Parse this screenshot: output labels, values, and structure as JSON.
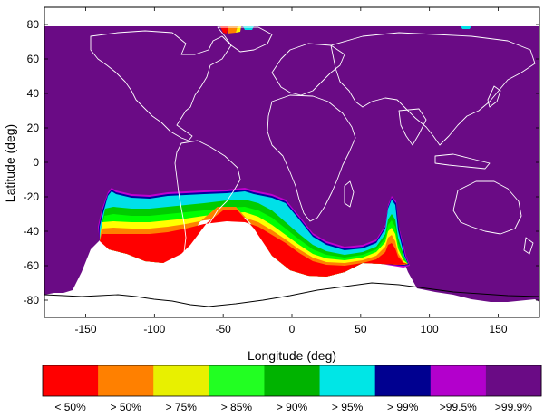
{
  "map": {
    "xlabel": "Longitude (deg)",
    "ylabel": "Latitude (deg)",
    "xlim": [
      -180,
      180
    ],
    "ylim": [
      -90,
      90
    ],
    "x_ticks": [
      -150,
      -100,
      -50,
      0,
      50,
      100,
      150
    ],
    "y_ticks": [
      80,
      60,
      40,
      20,
      0,
      -20,
      -40,
      -60,
      -80
    ],
    "data_lat_max": 75,
    "colors": {
      "background_land_ocean": "#6a0b85",
      "no_coverage": "#ffffff",
      "coastline": "#ffffff",
      "bands": [
        "#ff0000",
        "#ff8000",
        "#ffff00",
        "#00ff00",
        "#00cc00",
        "#00e0e8",
        "#0000a0",
        "#c000d0",
        "#6a0b85"
      ]
    }
  },
  "colorbar": {
    "labels": [
      "< 50%",
      "> 50%",
      "> 75%",
      "> 85%",
      "> 90%",
      "> 95%",
      "> 99%",
      ">99.5%",
      ">99.9%"
    ],
    "colors": [
      "#ff0000",
      "#ff8000",
      "#e8f000",
      "#22ff22",
      "#00b300",
      "#00e6e6",
      "#000090",
      "#b300cc",
      "#6a0b85"
    ]
  },
  "chart_data": {
    "type": "heatmap",
    "title": "",
    "xlabel": "Longitude (deg)",
    "ylabel": "Latitude (deg)",
    "xlim": [
      -180,
      180
    ],
    "ylim": [
      -90,
      90
    ],
    "coverage_limit_lat": 75,
    "lowest_coverage_region": {
      "lon_range": [
        -137,
        80
      ],
      "lat_range": [
        -62,
        -14
      ],
      "note_levels_present": [
        "< 50%",
        "> 50%",
        "> 75%",
        "> 85%",
        "> 90%",
        "> 95%",
        "> 99%",
        ">99.5%"
      ]
    },
    "legend": [
      "< 50%",
      "> 50%",
      "> 75%",
      "> 85%",
      "> 90%",
      "> 95%",
      "> 99%",
      ">99.5%",
      ">99.9%"
    ]
  }
}
